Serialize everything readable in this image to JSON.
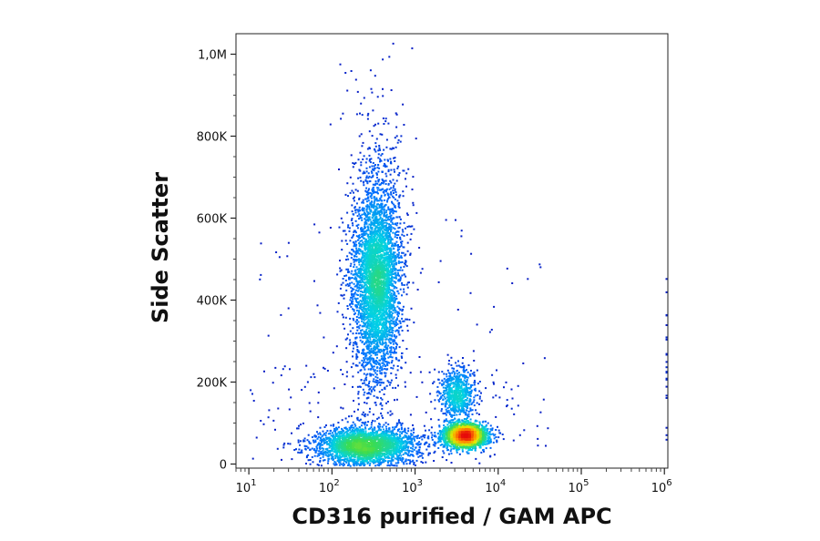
{
  "chart_data": {
    "type": "scatter",
    "title": "",
    "xlabel": "CD316 purified / GAM APC",
    "ylabel": "Side Scatter",
    "x_scale": "log",
    "xlim": [
      7,
      1100000
    ],
    "ylim": [
      -10000,
      1050000
    ],
    "x_ticks": [
      {
        "base": "10",
        "exp": "1",
        "value": 10
      },
      {
        "base": "10",
        "exp": "2",
        "value": 100
      },
      {
        "base": "10",
        "exp": "3",
        "value": 1000
      },
      {
        "base": "10",
        "exp": "4",
        "value": 10000
      },
      {
        "base": "10",
        "exp": "5",
        "value": 100000
      },
      {
        "base": "10",
        "exp": "6",
        "value": 1000000
      }
    ],
    "y_ticks": [
      {
        "label": "0",
        "value": 0
      },
      {
        "label": "200K",
        "value": 200000
      },
      {
        "label": "400K",
        "value": 400000
      },
      {
        "label": "600K",
        "value": 600000
      },
      {
        "label": "800K",
        "value": 800000
      },
      {
        "label": "1,0M",
        "value": 1000000
      }
    ],
    "grid": false,
    "legend": "none",
    "color_map": "density (blue to cyan to green to yellow to red)",
    "series": [
      {
        "population": 1,
        "center_x": 350,
        "center_y": 440000,
        "events": 4200
      },
      {
        "population": 2,
        "center_x": 250,
        "center_y": 45000,
        "events": 2600
      },
      {
        "population": 3,
        "center_x": 4000,
        "center_y": 70000,
        "events": 2400
      },
      {
        "population": 4,
        "center_x": 3200,
        "center_y": 170000,
        "events": 700
      }
    ]
  }
}
